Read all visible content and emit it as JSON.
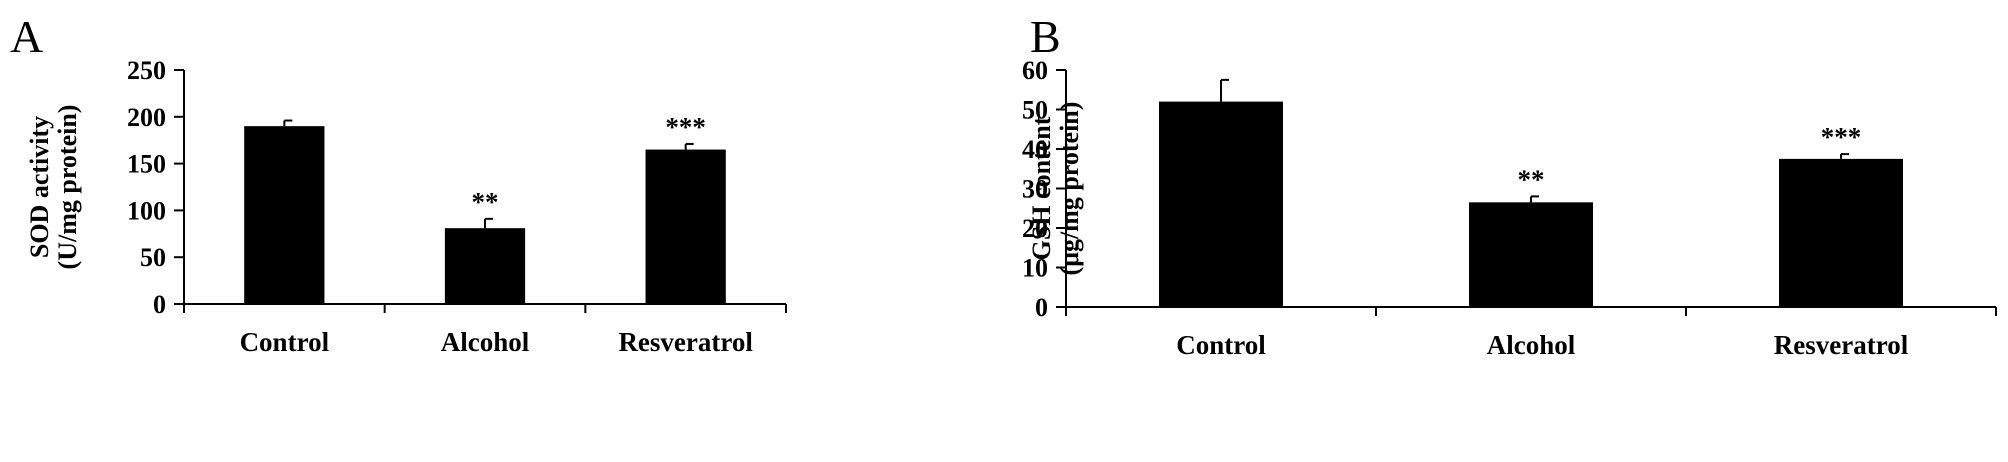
{
  "chart_data": [
    {
      "panel": "A",
      "type": "bar",
      "categories": [
        "Control",
        "Alcohol",
        "Resveratrol"
      ],
      "values": [
        190,
        81,
        165
      ],
      "errors": [
        6,
        10,
        6
      ],
      "significance": [
        "",
        "**",
        "***"
      ],
      "ylabel_lines": [
        "SOD activity",
        "(U/mg protein)"
      ],
      "xlabel": "",
      "ylim": [
        0,
        250
      ],
      "yticks": [
        0,
        50,
        100,
        150,
        200,
        250
      ],
      "grid": false,
      "bar_color": "#000000"
    },
    {
      "panel": "B",
      "type": "bar",
      "categories": [
        "Control",
        "Alcohol",
        "Resveratrol"
      ],
      "values": [
        52,
        26.5,
        37.5
      ],
      "errors": [
        5.5,
        1.5,
        1.2
      ],
      "significance": [
        "",
        "**",
        "***"
      ],
      "ylabel_lines": [
        "GSH content",
        "(μg/mg protein)"
      ],
      "xlabel": "",
      "ylim": [
        0,
        60
      ],
      "yticks": [
        0,
        10,
        20,
        30,
        40,
        50,
        60
      ],
      "grid": false,
      "bar_color": "#000000"
    }
  ]
}
